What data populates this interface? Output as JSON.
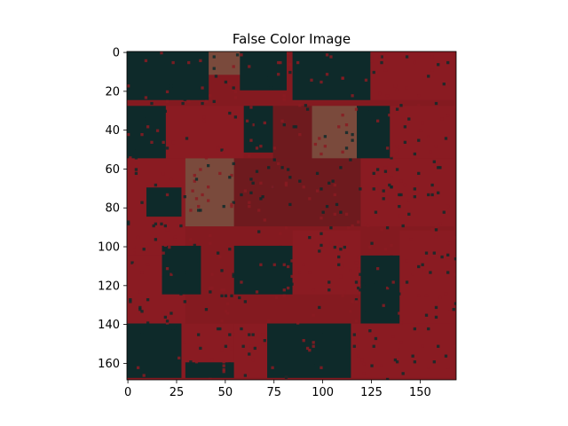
{
  "chart_data": {
    "type": "heatmap",
    "title": "False Color Image",
    "xlabel": "",
    "ylabel": "",
    "image_shape": [
      169,
      169
    ],
    "xlim": [
      -0.5,
      168.5
    ],
    "ylim": [
      168.5,
      -0.5
    ],
    "y_axis_inverted": true,
    "grid": false,
    "legend": "none",
    "x_ticks": [
      0,
      25,
      50,
      75,
      100,
      125,
      150
    ],
    "y_ticks": [
      0,
      20,
      40,
      60,
      80,
      100,
      120,
      140,
      160
    ],
    "palette": {
      "crop_red": "#8a1b22",
      "dark_red": "#6e1a1e",
      "bare_soil": "#7a4a3c",
      "water_dark": "#0e2a2a",
      "dark_teal": "#0a3030"
    },
    "regions": [
      {
        "x0": 0,
        "x1": 42,
        "y0": 0,
        "y1": 25,
        "class": "water_dark"
      },
      {
        "x0": 42,
        "x1": 68,
        "y0": 0,
        "y1": 12,
        "class": "bare_soil"
      },
      {
        "x0": 58,
        "x1": 82,
        "y0": 0,
        "y1": 20,
        "class": "water_dark"
      },
      {
        "x0": 85,
        "x1": 125,
        "y0": 0,
        "y1": 25,
        "class": "water_dark"
      },
      {
        "x0": 125,
        "x1": 168,
        "y0": 0,
        "y1": 25,
        "class": "crop_red"
      },
      {
        "x0": 0,
        "x1": 20,
        "y0": 28,
        "y1": 55,
        "class": "water_dark"
      },
      {
        "x0": 20,
        "x1": 60,
        "y0": 28,
        "y1": 55,
        "class": "crop_red"
      },
      {
        "x0": 60,
        "x1": 75,
        "y0": 28,
        "y1": 52,
        "class": "water_dark"
      },
      {
        "x0": 75,
        "x1": 95,
        "y0": 28,
        "y1": 55,
        "class": "dark_red"
      },
      {
        "x0": 95,
        "x1": 118,
        "y0": 28,
        "y1": 55,
        "class": "bare_soil"
      },
      {
        "x0": 118,
        "x1": 135,
        "y0": 28,
        "y1": 55,
        "class": "water_dark"
      },
      {
        "x0": 135,
        "x1": 168,
        "y0": 28,
        "y1": 55,
        "class": "crop_red"
      },
      {
        "x0": 0,
        "x1": 30,
        "y0": 55,
        "y1": 105,
        "class": "crop_red"
      },
      {
        "x0": 10,
        "x1": 28,
        "y0": 70,
        "y1": 85,
        "class": "water_dark"
      },
      {
        "x0": 30,
        "x1": 55,
        "y0": 55,
        "y1": 90,
        "class": "bare_soil"
      },
      {
        "x0": 55,
        "x1": 120,
        "y0": 55,
        "y1": 90,
        "class": "dark_red"
      },
      {
        "x0": 120,
        "x1": 168,
        "y0": 55,
        "y1": 90,
        "class": "crop_red"
      },
      {
        "x0": 0,
        "x1": 30,
        "y0": 105,
        "y1": 140,
        "class": "crop_red"
      },
      {
        "x0": 18,
        "x1": 38,
        "y0": 100,
        "y1": 125,
        "class": "water_dark"
      },
      {
        "x0": 55,
        "x1": 85,
        "y0": 100,
        "y1": 125,
        "class": "water_dark"
      },
      {
        "x0": 85,
        "x1": 120,
        "y0": 92,
        "y1": 125,
        "class": "crop_red"
      },
      {
        "x0": 120,
        "x1": 140,
        "y0": 105,
        "y1": 140,
        "class": "water_dark"
      },
      {
        "x0": 140,
        "x1": 168,
        "y0": 92,
        "y1": 140,
        "class": "crop_red"
      },
      {
        "x0": 0,
        "x1": 28,
        "y0": 140,
        "y1": 168,
        "class": "water_dark"
      },
      {
        "x0": 28,
        "x1": 55,
        "y0": 140,
        "y1": 168,
        "class": "crop_red"
      },
      {
        "x0": 30,
        "x1": 55,
        "y0": 160,
        "y1": 168,
        "class": "water_dark"
      },
      {
        "x0": 55,
        "x1": 80,
        "y0": 140,
        "y1": 168,
        "class": "crop_red"
      },
      {
        "x0": 72,
        "x1": 115,
        "y0": 140,
        "y1": 168,
        "class": "water_dark"
      },
      {
        "x0": 115,
        "x1": 168,
        "y0": 140,
        "y1": 168,
        "class": "crop_red"
      }
    ]
  }
}
